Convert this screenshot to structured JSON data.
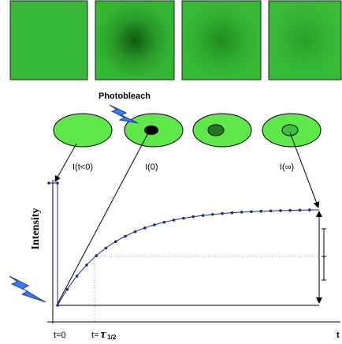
{
  "photobleach_label": "Photobleach",
  "states": [
    {
      "label": "I(t<0)"
    },
    {
      "label": "I(0)"
    },
    {
      "label": "I(∞)"
    }
  ],
  "y_axis_label": "Intensity",
  "x_labels": {
    "t0": "t=0",
    "thalf_prefix": "t=",
    "thalf_symbol": "τ",
    "thalf_sub": "1/2",
    "t": "t"
  }
}
